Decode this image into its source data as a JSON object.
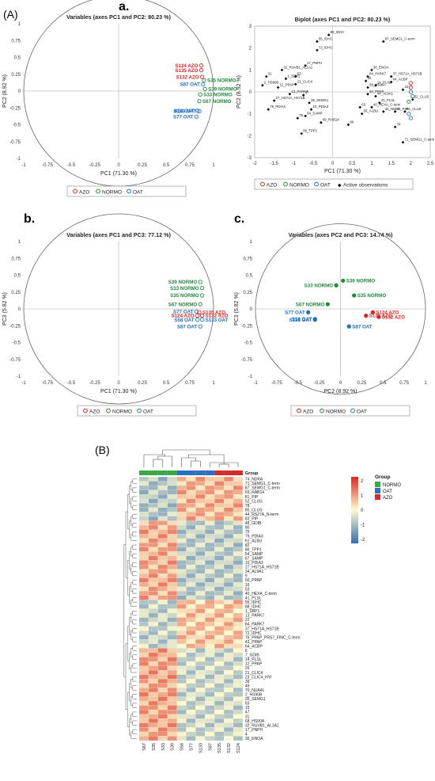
{
  "section_labels": {
    "A": "(A)",
    "B": "(B)"
  },
  "panel_labels": {
    "a": "a.",
    "b": "b.",
    "c": "c."
  },
  "colors": {
    "AZO": "#e02020",
    "NORMO": "#1f8a3a",
    "OAT": "#1f6fc0",
    "black": "#111111"
  },
  "chart_data": [
    {
      "id": "circle_pc1_pc2",
      "type": "scatter",
      "title": "Variables (axes PC1 and PC2: 80.23 %)",
      "xlabel": "PC1 (71.30 %)",
      "ylabel": "PC2 (8.92 %)",
      "xlim": [
        -1,
        1
      ],
      "ylim": [
        -1,
        1
      ],
      "xticks": [
        "-1",
        "-0.75",
        "-0.5",
        "-0.25",
        "0",
        "0.25",
        "0.5",
        "0.75",
        "1"
      ],
      "yticks": [
        "-1",
        "-0.75",
        "-0.5",
        "-0.25",
        "0",
        "0.25",
        "0.5",
        "0.75",
        "1"
      ],
      "legend": [
        "AZO",
        "NORMO",
        "OAT"
      ],
      "points": [
        {
          "label": "S124 AZO",
          "x": 0.87,
          "y": 0.38,
          "g": "AZO"
        },
        {
          "label": "S135 AZO",
          "x": 0.87,
          "y": 0.31,
          "g": "AZO"
        },
        {
          "label": "S132 AZO",
          "x": 0.88,
          "y": 0.21,
          "g": "AZO"
        },
        {
          "label": "S87 OAT",
          "x": 0.89,
          "y": 0.1,
          "g": "OAT"
        },
        {
          "label": "S35 NORMO",
          "x": 0.9,
          "y": 0.16,
          "g": "NORMO"
        },
        {
          "label": "S39 NORMO",
          "x": 0.91,
          "y": 0.03,
          "g": "NORMO"
        },
        {
          "label": "S33 NORMO",
          "x": 0.86,
          "y": -0.05,
          "g": "NORMO"
        },
        {
          "label": "S67 NORMO",
          "x": 0.85,
          "y": -0.15,
          "g": "NORMO"
        },
        {
          "label": "S58 OAT",
          "x": 0.83,
          "y": -0.29,
          "g": "OAT"
        },
        {
          "label": "S133 OAT",
          "x": 0.85,
          "y": -0.3,
          "g": "OAT"
        },
        {
          "label": "S77 OAT",
          "x": 0.82,
          "y": -0.38,
          "g": "OAT"
        }
      ]
    },
    {
      "id": "biplot_pc1_pc2",
      "type": "scatter",
      "title": "Biplot (axes PC1 and PC2: 80.23 %)",
      "xlabel": "PC1 (71.30 %)",
      "ylabel": "PC2 (8.92 %)",
      "xlim": [
        -2,
        2.5
      ],
      "ylim": [
        -3,
        3
      ],
      "xticks": [
        "-2",
        "-1.5",
        "-1",
        "-0.5",
        "0",
        "0.5",
        "1",
        "1.5",
        "2",
        "2.5"
      ],
      "yticks": [
        "-3",
        "-2",
        "-1",
        "0",
        "1",
        "2",
        "3"
      ],
      "legend": [
        "AZO",
        "NORMO",
        "OAT",
        "Active observations"
      ],
      "points": [
        {
          "label": "88_IDHC",
          "x": -0.1,
          "y": 2.6,
          "g": "obs"
        },
        {
          "label": "55_IDHC",
          "x": -0.4,
          "y": 2.3,
          "g": "obs"
        },
        {
          "label": "72_IDHC",
          "x": -0.4,
          "y": 1.9,
          "g": "obs"
        },
        {
          "label": "87_SEMG1_C-term",
          "x": 1.3,
          "y": 2.3,
          "g": "obs"
        },
        {
          "label": "17_PNPH",
          "x": -0.7,
          "y": 1.2,
          "g": "obs"
        },
        {
          "label": "32_RUVB1_AL1A1",
          "x": -1.3,
          "y": 1.0,
          "g": "obs"
        },
        {
          "label": "31",
          "x": -1.7,
          "y": 0.7,
          "g": "obs"
        },
        {
          "label": "1_SBP1",
          "x": -1.2,
          "y": 0.6,
          "g": "obs"
        },
        {
          "label": "53",
          "x": -0.95,
          "y": 0.7,
          "g": "obs"
        },
        {
          "label": "2_HS90B",
          "x": -1.8,
          "y": 0.3,
          "g": "obs"
        },
        {
          "label": "12_PPAP",
          "x": -1.4,
          "y": 0.2,
          "g": "obs"
        },
        {
          "label": "21_CLIC4",
          "x": -0.95,
          "y": 0.35,
          "g": "obs"
        },
        {
          "label": "13_PARK7",
          "x": -1.1,
          "y": -0.1,
          "g": "obs"
        },
        {
          "label": "47",
          "x": -0.75,
          "y": -0.15,
          "g": "obs"
        },
        {
          "label": "27_HS71A_HS71B",
          "x": -1.5,
          "y": -0.4,
          "g": "obs"
        },
        {
          "label": "79_PDIA3",
          "x": -1.65,
          "y": -0.8,
          "g": "obs"
        },
        {
          "label": "35_SEMG1",
          "x": -0.6,
          "y": -0.5,
          "g": "obs"
        },
        {
          "label": "10_PDIA3",
          "x": -0.55,
          "y": -0.8,
          "g": "obs"
        },
        {
          "label": "54_SAMP",
          "x": -0.7,
          "y": -1.1,
          "g": "obs"
        },
        {
          "label": "75",
          "x": -0.9,
          "y": -1.2,
          "g": "obs"
        },
        {
          "label": "69_RAB14",
          "x": -0.3,
          "y": -1.4,
          "g": "obs"
        },
        {
          "label": "86_TPP1",
          "x": -0.8,
          "y": -1.9,
          "g": "obs"
        },
        {
          "label": "36_ENOA",
          "x": 1.0,
          "y": 1.0,
          "g": "obs"
        },
        {
          "label": "84_PARK7",
          "x": 0.9,
          "y": 0.7,
          "g": "obs"
        },
        {
          "label": "37_HS71A_HS71B",
          "x": 1.5,
          "y": 0.7,
          "g": "obs"
        },
        {
          "label": "25",
          "x": 0.85,
          "y": 0.5,
          "g": "obs"
        },
        {
          "label": "64_ACBP",
          "x": 1.5,
          "y": 0.45,
          "g": "obs"
        },
        {
          "label": "14_PLSL",
          "x": 1.1,
          "y": 0.3,
          "g": "obs"
        },
        {
          "label": "68_HS90A",
          "x": 0.9,
          "y": 0.2,
          "g": "obs"
        },
        {
          "label": "50_PPAP",
          "x": 0.9,
          "y": -0.1,
          "g": "obs"
        },
        {
          "label": "44_AL9A1",
          "x": 1.1,
          "y": -0.2,
          "g": "obs"
        },
        {
          "label": "22",
          "x": 1.8,
          "y": 0.1,
          "g": "obs"
        },
        {
          "label": "41_PLSL",
          "x": 1.2,
          "y": -0.5,
          "g": "obs"
        },
        {
          "label": "40_HEXA_C-term",
          "x": 1.0,
          "y": -0.7,
          "g": "obs"
        },
        {
          "label": "34_NDKA",
          "x": 1.3,
          "y": -0.9,
          "g": "obs"
        },
        {
          "label": "81_PIP",
          "x": 1.6,
          "y": -0.9,
          "g": "obs"
        },
        {
          "label": "63",
          "x": 0.7,
          "y": -0.7,
          "g": "obs"
        },
        {
          "label": "65_ALBU",
          "x": 0.75,
          "y": -1.0,
          "g": "obs"
        },
        {
          "label": "80",
          "x": 0.4,
          "y": -1.5,
          "g": "obs"
        },
        {
          "label": "78",
          "x": 1.6,
          "y": -1.6,
          "g": "obs"
        },
        {
          "label": "71_SEMG1_C-term",
          "x": 1.8,
          "y": -2.3,
          "g": "obs"
        },
        {
          "label": "52_CLUS",
          "x": 2.05,
          "y": -0.35,
          "g": "obs"
        },
        {
          "label": "85_CLUS",
          "x": 1.85,
          "y": -0.9,
          "g": "obs"
        },
        {
          "label": "",
          "x": 2.0,
          "y": 0.4,
          "g": "AZO"
        },
        {
          "label": "",
          "x": 2.0,
          "y": 0.2,
          "g": "AZO"
        },
        {
          "label": "",
          "x": 2.0,
          "y": 0.0,
          "g": "OAT"
        },
        {
          "label": "",
          "x": 2.05,
          "y": -0.2,
          "g": "NORMO"
        },
        {
          "label": "",
          "x": 1.95,
          "y": -0.45,
          "g": "NORMO"
        },
        {
          "label": "",
          "x": 1.95,
          "y": -1.0,
          "g": "OAT"
        },
        {
          "label": "",
          "x": 2.0,
          "y": -1.2,
          "g": "OAT"
        }
      ]
    },
    {
      "id": "circle_pc1_pc3",
      "type": "scatter",
      "title": "Variables (axes PC1 and PC3: 77.12 %)",
      "xlabel": "PC1 (71.30 %)",
      "ylabel": "PC3 (5.82 %)",
      "xlim": [
        -1,
        1
      ],
      "ylim": [
        -1,
        1
      ],
      "xticks": [
        "-1",
        "-0.75",
        "-0.5",
        "-0.25",
        "0",
        "0.25",
        "0.5",
        "0.75",
        "1"
      ],
      "yticks": [
        "-1",
        "-0.75",
        "-0.5",
        "-0.25",
        "0",
        "0.25",
        "0.5",
        "0.75",
        "1"
      ],
      "legend": [
        "AZO",
        "NORMO",
        "OAT"
      ],
      "points": [
        {
          "label": "S39 NORMO",
          "x": 0.86,
          "y": 0.4,
          "g": "NORMO"
        },
        {
          "label": "S33 NORMO",
          "x": 0.88,
          "y": 0.31,
          "g": "NORMO"
        },
        {
          "label": "S35 NORMO",
          "x": 0.88,
          "y": 0.2,
          "g": "NORMO"
        },
        {
          "label": "S67 NORMO",
          "x": 0.86,
          "y": 0.07,
          "g": "NORMO"
        },
        {
          "label": "S77 OAT",
          "x": 0.82,
          "y": -0.04,
          "g": "OAT"
        },
        {
          "label": "S135 AZO",
          "x": 0.85,
          "y": -0.05,
          "g": "AZO"
        },
        {
          "label": "S124 AZO",
          "x": 0.83,
          "y": -0.1,
          "g": "AZO"
        },
        {
          "label": "S132 AZO",
          "x": 0.88,
          "y": -0.1,
          "g": "AZO"
        },
        {
          "label": "S58 OAT",
          "x": 0.83,
          "y": -0.16,
          "g": "OAT"
        },
        {
          "label": "S133 OAT",
          "x": 0.88,
          "y": -0.16,
          "g": "OAT"
        },
        {
          "label": "S87 OAT",
          "x": 0.86,
          "y": -0.26,
          "g": "OAT"
        }
      ]
    },
    {
      "id": "circle_pc2_pc3",
      "type": "scatter",
      "title": "Variables (axes PC2 and PC3: 14.74 %)",
      "xlabel": "PC2 (8.92 %)",
      "ylabel": "PC3 (5.82 %)",
      "xlim": [
        -1,
        1
      ],
      "ylim": [
        -1,
        1
      ],
      "xticks": [
        "-1",
        "-0.75",
        "-0.5",
        "-0.25",
        "0",
        "0.25",
        "0.5",
        "0.75",
        "1"
      ],
      "yticks": [
        "-1",
        "-0.75",
        "-0.5",
        "-0.25",
        "0",
        "0.25",
        "0.5",
        "0.75",
        "1"
      ],
      "legend": [
        "AZO",
        "NORMO",
        "OAT"
      ],
      "points": [
        {
          "label": "S39 NORMO",
          "x": 0.03,
          "y": 0.42,
          "g": "NORMO"
        },
        {
          "label": "S33 NORMO",
          "x": -0.05,
          "y": 0.35,
          "g": "NORMO"
        },
        {
          "label": "S35 NORMO",
          "x": 0.16,
          "y": 0.2,
          "g": "NORMO"
        },
        {
          "label": "S67 NORMO",
          "x": -0.15,
          "y": 0.07,
          "g": "NORMO"
        },
        {
          "label": "S77 OAT",
          "x": -0.38,
          "y": -0.05,
          "g": "OAT"
        },
        {
          "label": "S58 OAT",
          "x": -0.3,
          "y": -0.15,
          "g": "OAT"
        },
        {
          "label": "S133 OAT",
          "x": -0.3,
          "y": -0.16,
          "g": "OAT"
        },
        {
          "label": "S87 OAT",
          "x": 0.1,
          "y": -0.26,
          "g": "OAT"
        },
        {
          "label": "S135 AZO",
          "x": 0.3,
          "y": -0.1,
          "g": "AZO"
        },
        {
          "label": "S124 AZO",
          "x": 0.38,
          "y": -0.05,
          "g": "AZO"
        },
        {
          "label": "S132 AZO",
          "x": 0.45,
          "y": -0.12,
          "g": "AZO"
        }
      ]
    },
    {
      "id": "heatmap",
      "type": "heatmap",
      "legend_title": "Group",
      "legend": [
        {
          "name": "NORMO",
          "color": "#3aa84a"
        },
        {
          "name": "OAT",
          "color": "#2e6fc0"
        },
        {
          "name": "AZO",
          "color": "#d42a2a"
        }
      ],
      "colorbar_ticks": [
        "2",
        "1",
        "0",
        "-1",
        "-2"
      ],
      "columns": [
        "S67",
        "S35",
        "S33",
        "S39",
        "S58",
        "S77",
        "S133",
        "S87",
        "S135",
        "S132",
        "S124"
      ],
      "column_groups": [
        "NORMO",
        "NORMO",
        "NORMO",
        "NORMO",
        "OAT",
        "OAT",
        "OAT",
        "OAT",
        "AZO",
        "AZO",
        "AZO"
      ],
      "rows": [
        "74_NDKA",
        "71_SEMG1_C-term",
        "87_SEMG1_C-term",
        "69_RAB14",
        "81_PIP",
        "52_CLUS",
        "78",
        "85_CLUS",
        "44_RS27A_N-term",
        "83_PIP",
        "48_GDIB",
        "80",
        "75",
        "79_PDIA3",
        "61_ALBU",
        "82",
        "86_TPP1",
        "54_SAMP",
        "67_SAMP",
        "10_PDIA3",
        "27_HS71A_HS71B",
        "34_AL9A1",
        "9",
        "50_PPAP",
        "16",
        "53",
        "40_HEXA_C-term",
        "41_PLSL",
        "55_IDHC",
        "88_IDHC",
        "1_SBP1",
        "13_PARK7",
        "22",
        "84_PARK7",
        "37_HS71A_HS71B",
        "72_IDHC",
        "76_PPAP_PRS7_FINC_C-term",
        "43_PPAP",
        "64_ACBP",
        "6",
        "7_GDIB",
        "14_PLSL",
        "12_PPAP",
        "26",
        "21_CLIC4",
        "23_CLIC4_HYI",
        "39",
        "49",
        "70_NUA4L",
        "2_HS90B",
        "35_SEMG1",
        "63",
        "15",
        "47",
        "31",
        "68_HS90A",
        "32_RUVB1_AL1A1",
        "17_PNPH",
        "4",
        "36_ENOA"
      ]
    }
  ]
}
